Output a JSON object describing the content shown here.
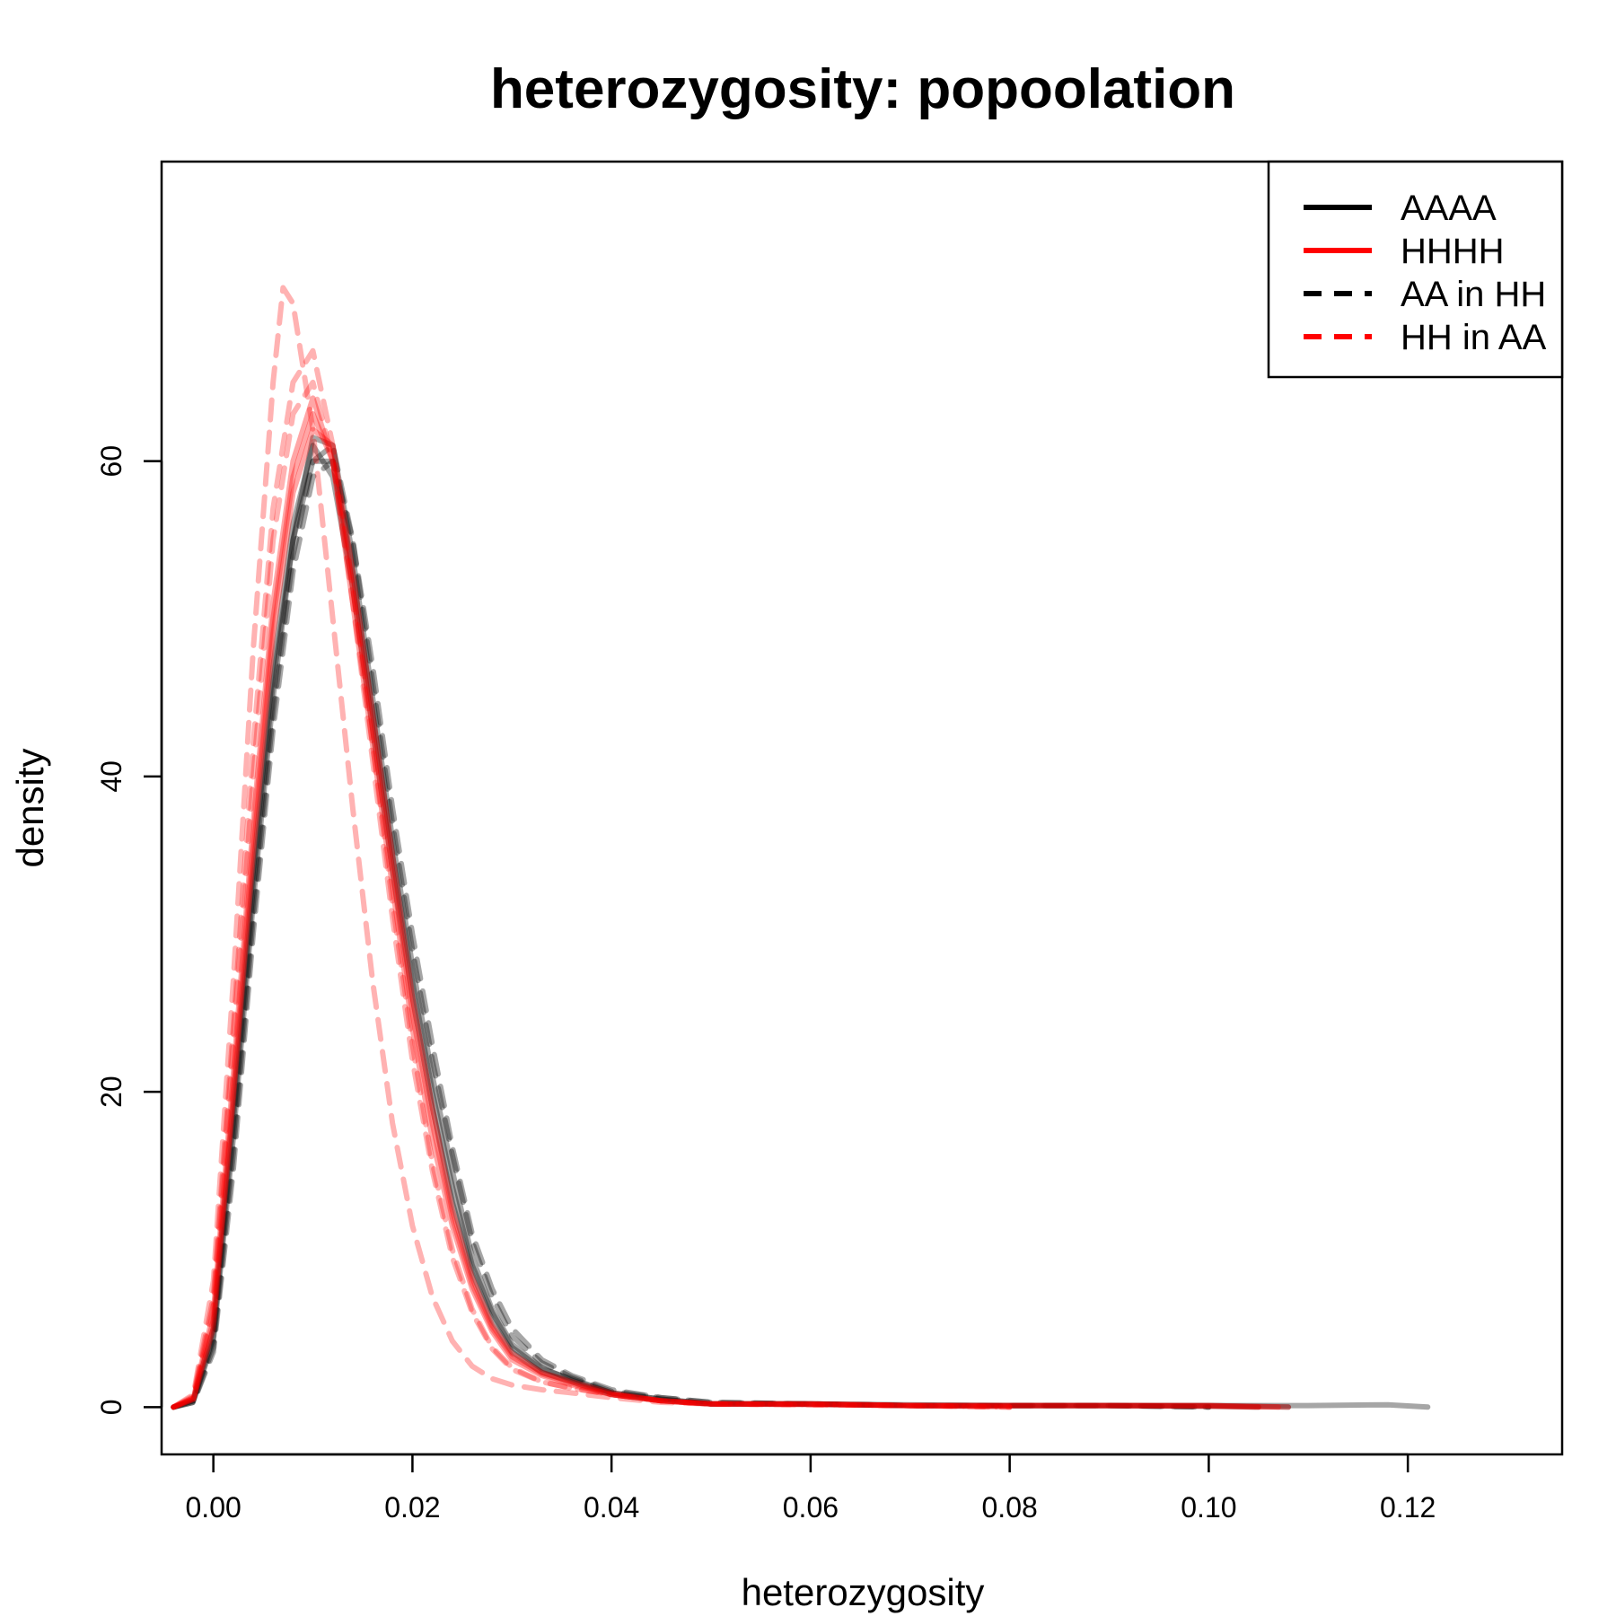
{
  "chart_data": {
    "type": "line",
    "title": "heterozygosity: popoolation",
    "xlabel": "heterozygosity",
    "ylabel": "density",
    "xlim": [
      -0.0052,
      0.1355
    ],
    "ylim": [
      -3,
      79
    ],
    "xticks": [
      0.0,
      0.02,
      0.04,
      0.06,
      0.08,
      0.1,
      0.12
    ],
    "xtick_labels": [
      "0.00",
      "0.02",
      "0.04",
      "0.06",
      "0.08",
      "0.10",
      "0.12"
    ],
    "yticks": [
      0,
      20,
      40,
      60
    ],
    "ytick_labels": [
      "0",
      "20",
      "40",
      "60"
    ],
    "grid": false,
    "legend_position": "top-right",
    "legend": [
      {
        "label": "AAAA",
        "color": "#000000",
        "dashed": false
      },
      {
        "label": "HHHH",
        "color": "#ff0000",
        "dashed": false
      },
      {
        "label": "AA in HH",
        "color": "#000000",
        "dashed": true
      },
      {
        "label": "HH in AA",
        "color": "#ff0000",
        "dashed": true
      }
    ],
    "series": [
      {
        "group": "AAAA",
        "color": "#000000",
        "dashed": false,
        "opacity": 0.35,
        "x": [
          -0.004,
          -0.002,
          0.0,
          0.002,
          0.004,
          0.006,
          0.008,
          0.01,
          0.012,
          0.014,
          0.016,
          0.018,
          0.02,
          0.022,
          0.024,
          0.026,
          0.028,
          0.03,
          0.033,
          0.036,
          0.04,
          0.045,
          0.05,
          0.06,
          0.07,
          0.08,
          0.09,
          0.1,
          0.11,
          0.118,
          0.122
        ],
        "y": [
          0,
          0.5,
          5,
          19,
          34,
          47,
          56,
          61,
          59,
          52,
          43,
          34,
          26,
          19,
          13,
          8.5,
          5.5,
          3.5,
          2.2,
          1.6,
          0.8,
          0.4,
          0.2,
          0.2,
          0.15,
          0.1,
          0.1,
          0.1,
          0.1,
          0.15,
          0.0
        ]
      },
      {
        "group": "AAAA",
        "color": "#000000",
        "dashed": false,
        "opacity": 0.35,
        "x": [
          -0.004,
          -0.002,
          0.0,
          0.002,
          0.004,
          0.006,
          0.008,
          0.01,
          0.012,
          0.014,
          0.016,
          0.018,
          0.02,
          0.022,
          0.024,
          0.026,
          0.028,
          0.03,
          0.033,
          0.036,
          0.04,
          0.045,
          0.05,
          0.06,
          0.07,
          0.08,
          0.09,
          0.1,
          0.105
        ],
        "y": [
          0,
          0.4,
          4.5,
          18,
          33,
          46,
          55,
          60,
          60,
          53,
          44,
          35,
          27,
          20,
          14,
          9,
          6,
          3.8,
          2.4,
          1.8,
          0.9,
          0.5,
          0.2,
          0.2,
          0.1,
          0.1,
          0.1,
          0.05,
          0.0
        ]
      },
      {
        "group": "AAAA",
        "color": "#000000",
        "dashed": false,
        "opacity": 0.35,
        "x": [
          -0.004,
          -0.002,
          0.0,
          0.002,
          0.004,
          0.006,
          0.008,
          0.01,
          0.012,
          0.014,
          0.016,
          0.018,
          0.02,
          0.022,
          0.024,
          0.026,
          0.028,
          0.03,
          0.033,
          0.036,
          0.04,
          0.045,
          0.05,
          0.06,
          0.07,
          0.08,
          0.09,
          0.1,
          0.108
        ],
        "y": [
          0,
          0.4,
          4.2,
          17,
          32,
          45,
          55,
          61.5,
          61,
          54,
          45,
          36,
          28,
          21,
          15,
          9.5,
          6.2,
          4,
          2.5,
          1.7,
          0.9,
          0.5,
          0.2,
          0.2,
          0.1,
          0.1,
          0.1,
          0.1,
          0.0
        ]
      },
      {
        "group": "AA in HH",
        "color": "#000000",
        "dashed": true,
        "opacity": 0.35,
        "x": [
          -0.004,
          -0.002,
          0.0,
          0.002,
          0.004,
          0.006,
          0.008,
          0.01,
          0.012,
          0.014,
          0.016,
          0.018,
          0.02,
          0.022,
          0.024,
          0.026,
          0.028,
          0.03,
          0.033,
          0.036,
          0.04,
          0.045,
          0.05,
          0.06,
          0.07,
          0.08,
          0.09,
          0.1
        ],
        "y": [
          0,
          0.3,
          3.8,
          16,
          31,
          44,
          54,
          60,
          61,
          55,
          46,
          37,
          29,
          22,
          16,
          10.5,
          7,
          4.5,
          2.8,
          1.9,
          1.0,
          0.6,
          0.3,
          0.2,
          0.1,
          0.1,
          0.1,
          0.0
        ]
      },
      {
        "group": "AA in HH",
        "color": "#000000",
        "dashed": true,
        "opacity": 0.35,
        "x": [
          -0.004,
          -0.002,
          0.0,
          0.002,
          0.004,
          0.006,
          0.008,
          0.01,
          0.012,
          0.014,
          0.016,
          0.018,
          0.02,
          0.022,
          0.024,
          0.026,
          0.028,
          0.03,
          0.033,
          0.036,
          0.04,
          0.045,
          0.05,
          0.06,
          0.07,
          0.08,
          0.09,
          0.1
        ],
        "y": [
          0,
          0.3,
          3.5,
          15,
          30,
          43,
          53,
          59,
          60,
          55,
          47,
          38,
          30,
          23,
          16.5,
          11,
          7.5,
          5,
          3,
          2,
          1.1,
          0.6,
          0.3,
          0.2,
          0.1,
          0.1,
          0.1,
          0.0
        ]
      },
      {
        "group": "HHHH",
        "color": "#ff0000",
        "dashed": false,
        "opacity": 0.35,
        "x": [
          -0.004,
          -0.002,
          0.0,
          0.002,
          0.004,
          0.006,
          0.008,
          0.01,
          0.012,
          0.014,
          0.016,
          0.018,
          0.02,
          0.022,
          0.024,
          0.026,
          0.028,
          0.03,
          0.033,
          0.036,
          0.04,
          0.045,
          0.05,
          0.06,
          0.07,
          0.08,
          0.09,
          0.1,
          0.107
        ],
        "y": [
          0,
          0.5,
          5.5,
          20,
          36,
          50,
          59,
          63,
          60,
          52,
          43,
          34,
          25,
          18,
          12,
          7.8,
          5,
          3.2,
          2.1,
          1.5,
          0.8,
          0.4,
          0.2,
          0.2,
          0.1,
          0.1,
          0.1,
          0.1,
          0.0
        ]
      },
      {
        "group": "HHHH",
        "color": "#ff0000",
        "dashed": false,
        "opacity": 0.35,
        "x": [
          -0.004,
          -0.002,
          0.0,
          0.002,
          0.004,
          0.006,
          0.008,
          0.01,
          0.012,
          0.014,
          0.016,
          0.018,
          0.02,
          0.022,
          0.024,
          0.026,
          0.028,
          0.03,
          0.033,
          0.036,
          0.04,
          0.045,
          0.05,
          0.06,
          0.07,
          0.08,
          0.09,
          0.1,
          0.105
        ],
        "y": [
          0,
          0.6,
          6,
          21,
          37,
          51,
          60,
          64,
          60,
          51,
          42,
          33,
          24,
          17,
          11.5,
          7.5,
          4.8,
          3,
          2,
          1.4,
          0.8,
          0.4,
          0.2,
          0.2,
          0.1,
          0.1,
          0.1,
          0.05,
          0.0
        ]
      },
      {
        "group": "HHHH",
        "color": "#ff0000",
        "dashed": false,
        "opacity": 0.35,
        "x": [
          -0.004,
          -0.002,
          0.0,
          0.002,
          0.004,
          0.006,
          0.008,
          0.01,
          0.012,
          0.014,
          0.016,
          0.018,
          0.02,
          0.022,
          0.024,
          0.026,
          0.028,
          0.03,
          0.033,
          0.036,
          0.04,
          0.045,
          0.05,
          0.06,
          0.07,
          0.08,
          0.09,
          0.1,
          0.108
        ],
        "y": [
          0,
          0.5,
          5,
          19.5,
          35,
          49,
          58,
          62,
          61,
          53,
          44,
          35,
          26,
          19,
          12.5,
          8.2,
          5.2,
          3.4,
          2.2,
          1.6,
          0.9,
          0.4,
          0.2,
          0.2,
          0.1,
          0.1,
          0.1,
          0.1,
          0.0
        ]
      },
      {
        "group": "HH in AA",
        "color": "#ff0000",
        "dashed": true,
        "opacity": 0.3,
        "x": [
          -0.004,
          -0.002,
          0.0,
          0.002,
          0.004,
          0.006,
          0.007,
          0.008,
          0.01,
          0.012,
          0.014,
          0.016,
          0.018,
          0.02,
          0.022,
          0.024,
          0.026,
          0.028,
          0.03,
          0.033,
          0.036,
          0.04,
          0.045,
          0.05,
          0.06,
          0.07,
          0.08
        ],
        "y": [
          0,
          0.8,
          8,
          27,
          48,
          65,
          71,
          70,
          62,
          50,
          38,
          27,
          18,
          11.5,
          7,
          4.2,
          2.6,
          1.8,
          1.4,
          1.1,
          0.9,
          0.6,
          0.3,
          0.2,
          0.15,
          0.1,
          0.0
        ]
      },
      {
        "group": "HH in AA",
        "color": "#ff0000",
        "dashed": true,
        "opacity": 0.3,
        "x": [
          -0.004,
          -0.002,
          0.0,
          0.002,
          0.004,
          0.006,
          0.008,
          0.01,
          0.012,
          0.014,
          0.016,
          0.018,
          0.02,
          0.022,
          0.024,
          0.026,
          0.028,
          0.03,
          0.033,
          0.036,
          0.04,
          0.045,
          0.05,
          0.06,
          0.07,
          0.08
        ],
        "y": [
          0,
          0.7,
          7,
          24,
          42,
          57,
          65,
          67,
          61,
          52,
          42,
          32,
          23,
          15.5,
          10,
          6.2,
          3.8,
          2.5,
          1.6,
          1.2,
          0.8,
          0.4,
          0.2,
          0.15,
          0.1,
          0.0
        ]
      },
      {
        "group": "HH in AA",
        "color": "#ff0000",
        "dashed": true,
        "opacity": 0.3,
        "x": [
          -0.004,
          -0.002,
          0.0,
          0.002,
          0.004,
          0.006,
          0.008,
          0.01,
          0.012,
          0.014,
          0.016,
          0.018,
          0.02,
          0.022,
          0.024,
          0.026,
          0.028,
          0.03,
          0.033,
          0.036,
          0.04,
          0.045,
          0.05,
          0.06,
          0.07,
          0.08
        ],
        "y": [
          0,
          0.6,
          6.5,
          23,
          40,
          55,
          63,
          65,
          60,
          51,
          41,
          31,
          22,
          15,
          9.5,
          6,
          3.7,
          2.4,
          1.6,
          1.2,
          0.8,
          0.4,
          0.2,
          0.15,
          0.1,
          0.0
        ]
      }
    ]
  }
}
